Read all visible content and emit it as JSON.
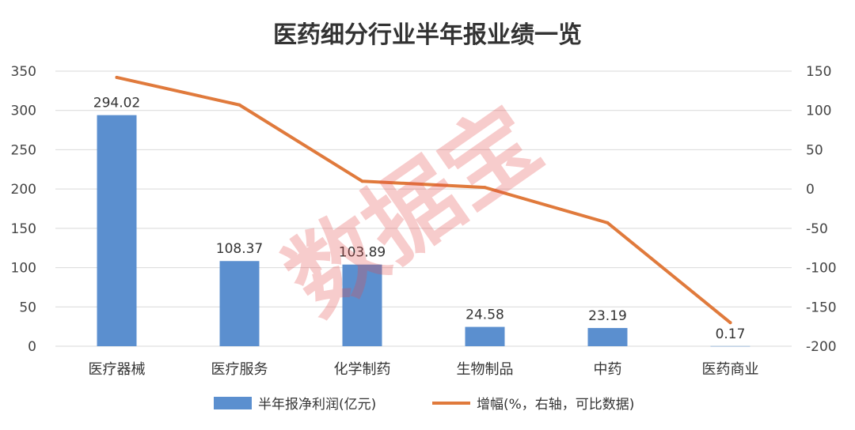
{
  "chart_data": {
    "type": "bar",
    "title": "医药细分行业半年报业绩一览",
    "categories": [
      "医疗器械",
      "医疗服务",
      "化学制药",
      "生物制品",
      "中药",
      "医药商业"
    ],
    "series": [
      {
        "name": "半年报净利润(亿元)",
        "type": "bar",
        "axis": "left",
        "color": "#5b8fcf",
        "values": [
          294.02,
          108.37,
          103.89,
          24.58,
          23.19,
          0.17
        ],
        "labels": [
          "294.02",
          "108.37",
          "103.89",
          "24.58",
          "23.19",
          "0.17"
        ]
      },
      {
        "name": "增幅(%，右轴，可比数据)",
        "type": "line",
        "axis": "right",
        "color": "#e07a3c",
        "values": [
          142,
          107,
          10,
          2,
          -43,
          -170
        ]
      }
    ],
    "y_left": {
      "min": 0,
      "max": 350,
      "ticks": [
        "350",
        "300",
        "250",
        "200",
        "150",
        "100",
        "50",
        "0"
      ]
    },
    "y_right": {
      "min": -200,
      "max": 150,
      "ticks": [
        "150",
        "100",
        "50",
        "0",
        "-50",
        "-100",
        "-150",
        "-200"
      ]
    },
    "grid": true,
    "legend_position": "bottom",
    "watermark": "数据宝"
  }
}
